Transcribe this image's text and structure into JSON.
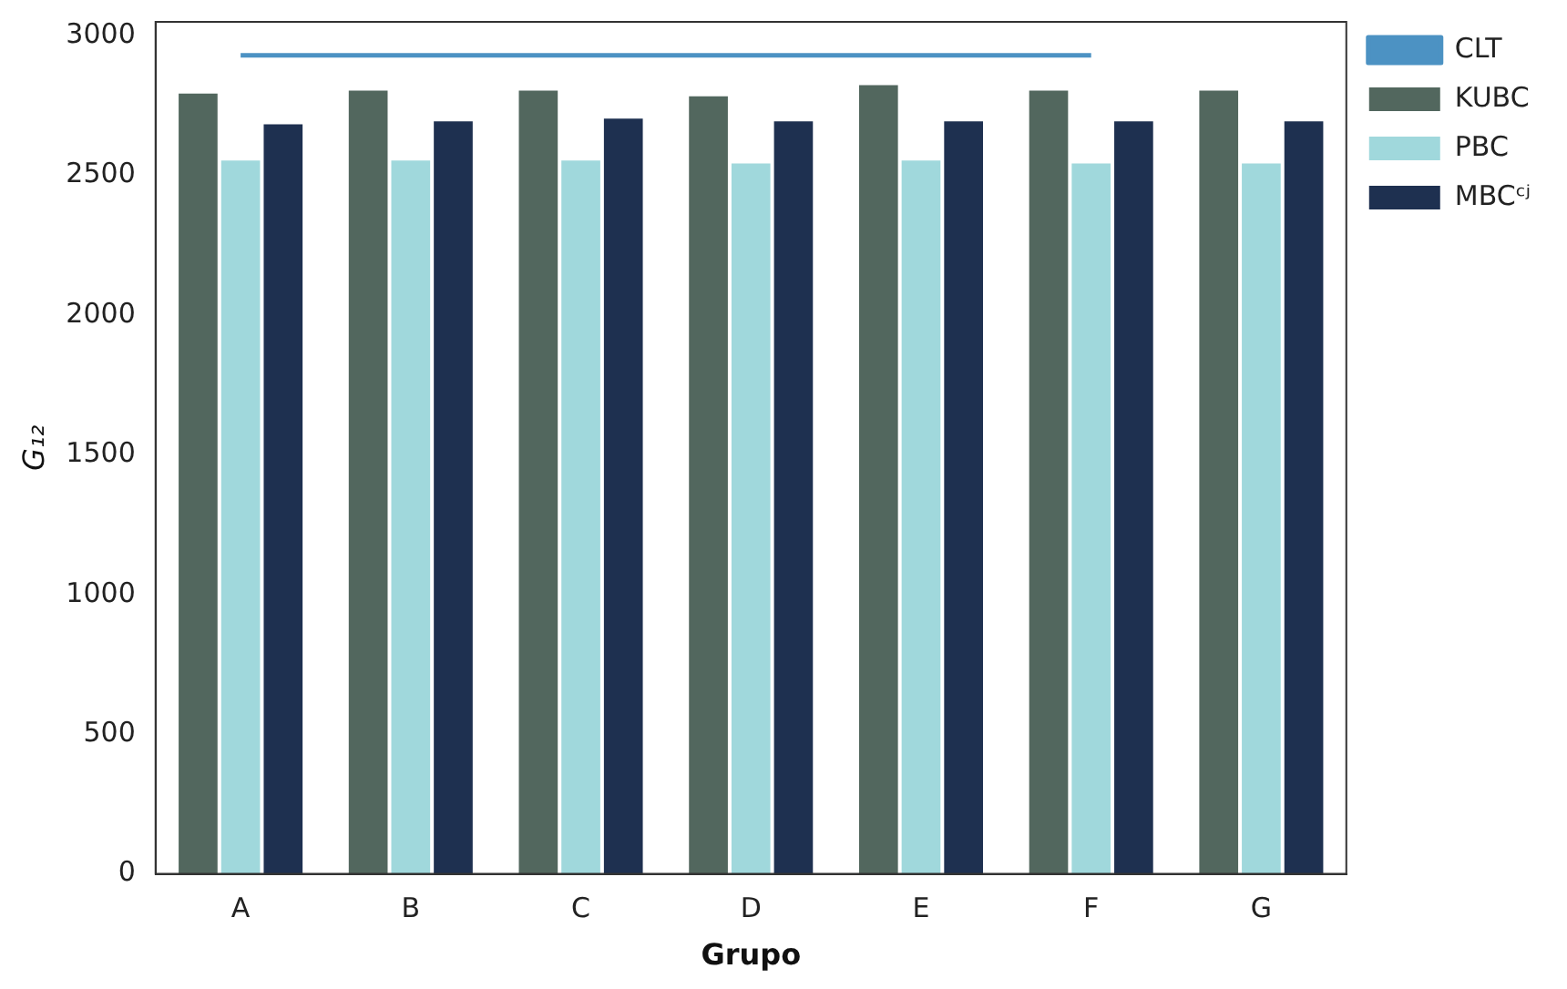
{
  "chart_data": {
    "type": "bar",
    "xlabel": "Grupo",
    "ylabel": "G₁₂",
    "categories": [
      "A",
      "B",
      "C",
      "D",
      "E",
      "F",
      "G"
    ],
    "series": [
      {
        "name": "CLT",
        "type": "line",
        "color": "#4c92c3",
        "values": [
          2930,
          2930,
          2930,
          2930,
          2930,
          2930,
          null
        ]
      },
      {
        "name": "KUBC",
        "color": "#52675e",
        "values": [
          2800,
          2810,
          2810,
          2790,
          2830,
          2810,
          2810
        ]
      },
      {
        "name": "PBC",
        "color": "#a0d8dc",
        "values": [
          2560,
          2560,
          2560,
          2550,
          2560,
          2550,
          2550
        ]
      },
      {
        "name": "MBCᶜʲ",
        "color": "#1e3050",
        "values": [
          2690,
          2700,
          2710,
          2700,
          2700,
          2700,
          2700
        ]
      }
    ],
    "ylim": [
      0,
      3050
    ],
    "yticks": [
      0,
      500,
      1000,
      1500,
      2000,
      2500,
      3000
    ],
    "grid": false,
    "legend": "top right",
    "marker": "none"
  }
}
